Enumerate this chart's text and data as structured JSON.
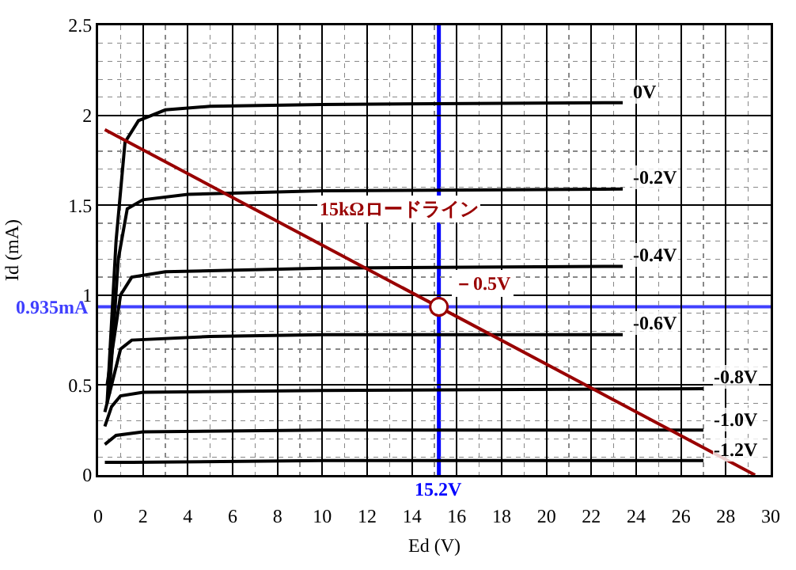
{
  "chart_data": {
    "type": "line",
    "xlabel": "Ed (V)",
    "ylabel": "Id (mA)",
    "xlim": [
      0,
      30
    ],
    "xticks": [
      0,
      2,
      4,
      6,
      8,
      10,
      12,
      14,
      16,
      18,
      20,
      22,
      24,
      26,
      28,
      30
    ],
    "ylim": [
      0,
      2.5
    ],
    "yticks": [
      0,
      0.5,
      1,
      1.5,
      2,
      2.5
    ],
    "grid": true,
    "legend": false,
    "line_style": "solid",
    "series": [
      {
        "name": "0V",
        "color": "#000000",
        "x": [
          0.4,
          0.8,
          1.2,
          1.8,
          3,
          5,
          10,
          23.4
        ],
        "values": [
          0.4,
          1.3,
          1.85,
          1.97,
          2.03,
          2.05,
          2.06,
          2.07
        ]
      },
      {
        "name": "-0.2V",
        "color": "#000000",
        "x": [
          0.5,
          0.9,
          1.3,
          2,
          4,
          10,
          23.4
        ],
        "values": [
          0.45,
          1.2,
          1.48,
          1.53,
          1.56,
          1.58,
          1.59
        ]
      },
      {
        "name": "-0.4V",
        "color": "#000000",
        "x": [
          0.4,
          1,
          1.5,
          3,
          10,
          23.4
        ],
        "values": [
          0.5,
          1,
          1.1,
          1.13,
          1.15,
          1.16
        ]
      },
      {
        "name": "-0.6V",
        "color": "#000000",
        "x": [
          0.3,
          1,
          1.5,
          5,
          10,
          23.4
        ],
        "values": [
          0.35,
          0.7,
          0.75,
          0.77,
          0.78,
          0.78
        ]
      },
      {
        "name": "-0.8V",
        "color": "#000000",
        "x": [
          0.3,
          0.6,
          1,
          2,
          10,
          27
        ],
        "values": [
          0.27,
          0.38,
          0.44,
          0.46,
          0.47,
          0.48
        ]
      },
      {
        "name": "-1.0V",
        "color": "#000000",
        "x": [
          0.3,
          0.8,
          2,
          10,
          27
        ],
        "values": [
          0.17,
          0.22,
          0.24,
          0.25,
          0.25
        ]
      },
      {
        "name": "-1.2V",
        "color": "#000000",
        "x": [
          0.3,
          1.5,
          10,
          27
        ],
        "values": [
          0.07,
          0.07,
          0.08,
          0.08
        ]
      },
      {
        "name": "15kΩロードライン",
        "color": "#990000",
        "x": [
          0.3,
          29.3
        ],
        "values": [
          1.92,
          0
        ]
      },
      {
        "type": "scatter",
        "color": "#990000",
        "marker": "circle",
        "x": [
          15.2
        ],
        "values": [
          0.935
        ]
      }
    ],
    "ref_lines": [
      {
        "axis": "y",
        "value": 0.935,
        "label": "0.935mA",
        "color": "#4040ff"
      },
      {
        "axis": "x",
        "value": 15.2,
        "label": "15.2V",
        "color": "#0000ff"
      }
    ],
    "annotations": [
      {
        "text": "－0.5V",
        "x": 15.2,
        "y": 0.935
      }
    ]
  }
}
